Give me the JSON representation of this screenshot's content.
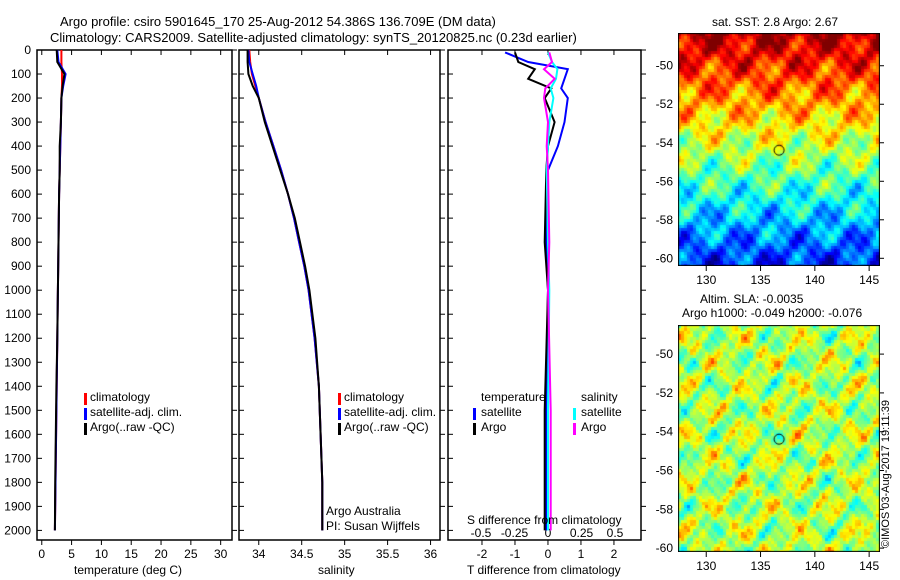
{
  "title_line1": "Argo profile: csiro 5901645_170 25-Aug-2012 54.386S 136.709E (DM data)",
  "title_line2": "Climatology: CARS2009. Satellite-adjusted climatology: synTS_20120825.nc (0.23d earlier)",
  "colors": {
    "climatology": "#ff0000",
    "satellite": "#0000ff",
    "argo": "#000000",
    "sal_satellite": "#00ffff",
    "sal_argo": "#ff00ff"
  },
  "chart_data": [
    {
      "type": "line",
      "xlabel": "temperature (deg C)",
      "ylabel": "",
      "xlim": [
        -0.8,
        31.9
      ],
      "ylim": [
        2040,
        0
      ],
      "xticks": [
        0,
        5,
        10,
        15,
        20,
        25,
        30
      ],
      "yticks": [
        0,
        100,
        200,
        300,
        400,
        500,
        600,
        700,
        800,
        900,
        1000,
        1100,
        1200,
        1300,
        1400,
        1500,
        1600,
        1700,
        1800,
        1900,
        2000
      ],
      "depth": [
        0,
        50,
        100,
        150,
        200,
        300,
        400,
        500,
        600,
        800,
        1000,
        1200,
        1400,
        1600,
        1800,
        2000
      ],
      "legend": [
        "climatology",
        "satellite-adj. clim.",
        "Argo(..raw -QC)"
      ],
      "series": [
        {
          "name": "climatology",
          "color": "#ff0000",
          "values": [
            3.3,
            3.3,
            3.4,
            3.4,
            3.3,
            3.2,
            3.1,
            3.0,
            2.9,
            2.8,
            2.7,
            2.6,
            2.5,
            2.4,
            2.3,
            2.2
          ]
        },
        {
          "name": "satellite-adj. clim.",
          "color": "#0000ff",
          "values": [
            2.6,
            2.8,
            4.0,
            3.6,
            3.3,
            3.2,
            3.1,
            3.0,
            2.9,
            2.8,
            2.7,
            2.6,
            2.5,
            2.4,
            2.3,
            2.2
          ]
        },
        {
          "name": "Argo(..raw -QC)",
          "color": "#000000",
          "values": [
            2.5,
            2.6,
            3.8,
            3.5,
            3.3,
            3.2,
            3.0,
            3.0,
            2.9,
            2.8,
            2.7,
            2.6,
            2.45,
            2.35,
            2.25,
            2.2
          ]
        }
      ]
    },
    {
      "type": "line",
      "xlabel": "salinity",
      "xlim": [
        33.77,
        36.11
      ],
      "ylim": [
        2040,
        0
      ],
      "xticks": [
        34,
        34.5,
        35,
        35.5,
        36
      ],
      "depth": [
        0,
        50,
        100,
        150,
        200,
        300,
        400,
        500,
        600,
        700,
        800,
        900,
        1000,
        1200,
        1400,
        1600,
        1800,
        2000
      ],
      "legend": [
        "climatology",
        "satellite-adj. clim.",
        "Argo(..raw -QC)"
      ],
      "annotation_1": "Argo Australia",
      "annotation_2": "PI: Susan Wijffels",
      "series": [
        {
          "name": "climatology",
          "color": "#ff0000",
          "values": [
            33.89,
            33.9,
            33.92,
            33.96,
            34.0,
            34.08,
            34.17,
            34.26,
            34.34,
            34.41,
            34.47,
            34.53,
            34.58,
            34.65,
            34.7,
            34.72,
            34.74,
            34.74
          ]
        },
        {
          "name": "satellite-adj. clim.",
          "color": "#0000ff",
          "values": [
            33.88,
            33.89,
            33.93,
            33.97,
            34.0,
            34.08,
            34.17,
            34.26,
            34.34,
            34.41,
            34.47,
            34.53,
            34.58,
            34.65,
            34.7,
            34.72,
            34.74,
            34.74
          ]
        },
        {
          "name": "Argo(..raw -QC)",
          "color": "#000000",
          "values": [
            33.87,
            33.87,
            33.88,
            33.93,
            34.0,
            34.07,
            34.16,
            34.25,
            34.34,
            34.42,
            34.48,
            34.54,
            34.59,
            34.66,
            34.7,
            34.72,
            34.74,
            34.74
          ]
        }
      ]
    },
    {
      "type": "line",
      "xlabel": "T difference from climatology",
      "x2label": "S difference from climatology",
      "xlim": [
        -3.03,
        2.82
      ],
      "ylim": [
        2040,
        0
      ],
      "xticks": [
        -2,
        -1,
        0,
        1,
        2
      ],
      "x2ticks": [
        "-0.5",
        "-0.25",
        "0",
        "0.25",
        "0.5"
      ],
      "legend_temperature": "temperature",
      "legend_salinity": "salinity",
      "legend_labels": [
        "satellite",
        "Argo",
        "satellite",
        "Argo"
      ],
      "depth": [
        10,
        50,
        80,
        120,
        160,
        200,
        300,
        400,
        500,
        800,
        1000,
        1500,
        2000
      ],
      "series": [
        {
          "name": "T satellite",
          "color": "#0000ff",
          "values": [
            -1.3,
            -0.6,
            0.6,
            0.5,
            0.4,
            0.6,
            0.5,
            0.3,
            0.0,
            -0.05,
            0.0,
            -0.05,
            -0.05
          ]
        },
        {
          "name": "T Argo",
          "color": "#000000",
          "values": [
            -1.0,
            -0.9,
            -0.4,
            -0.6,
            0.1,
            -0.1,
            0.2,
            0.0,
            -0.05,
            -0.1,
            0.0,
            -0.1,
            -0.1
          ]
        },
        {
          "name": "S satellite",
          "color": "#00ffff",
          "values": [
            0.0,
            0.03,
            0.07,
            0.06,
            0.02,
            0.04,
            0.01,
            0.0,
            -0.01,
            0.0,
            0.01,
            0.0,
            0.0
          ]
        },
        {
          "name": "S Argo",
          "color": "#ff00ff",
          "values": [
            0.01,
            0.03,
            -0.03,
            0.05,
            -0.02,
            -0.03,
            0.0,
            -0.01,
            0.0,
            0.01,
            0.0,
            0.02,
            0.02
          ]
        }
      ]
    },
    {
      "type": "heatmap",
      "title": "sat. SST: 2.8 Argo: 2.67",
      "xlim": [
        127.4,
        146.0
      ],
      "ylim": [
        -60.4,
        -48.3
      ],
      "xticks": [
        130,
        135,
        140,
        145
      ],
      "yticks": [
        -50,
        -52,
        -54,
        -56,
        -58,
        -60
      ],
      "marker": {
        "lon": 136.709,
        "lat": -54.386
      }
    },
    {
      "type": "heatmap",
      "title_1": "Altim. SLA: -0.0035",
      "title_2": "Argo h1000: -0.049 h2000: -0.076",
      "xlim": [
        127.4,
        146.0
      ],
      "ylim": [
        -60.2,
        -48.5
      ],
      "xticks": [
        130,
        135,
        140,
        145
      ],
      "yticks": [
        -50,
        -52,
        -54,
        -56,
        -58,
        -60
      ],
      "marker": {
        "lon": 136.709,
        "lat": -54.386
      }
    }
  ],
  "timestamp": "©IMOS 03-Aug-2017 19:11:39"
}
